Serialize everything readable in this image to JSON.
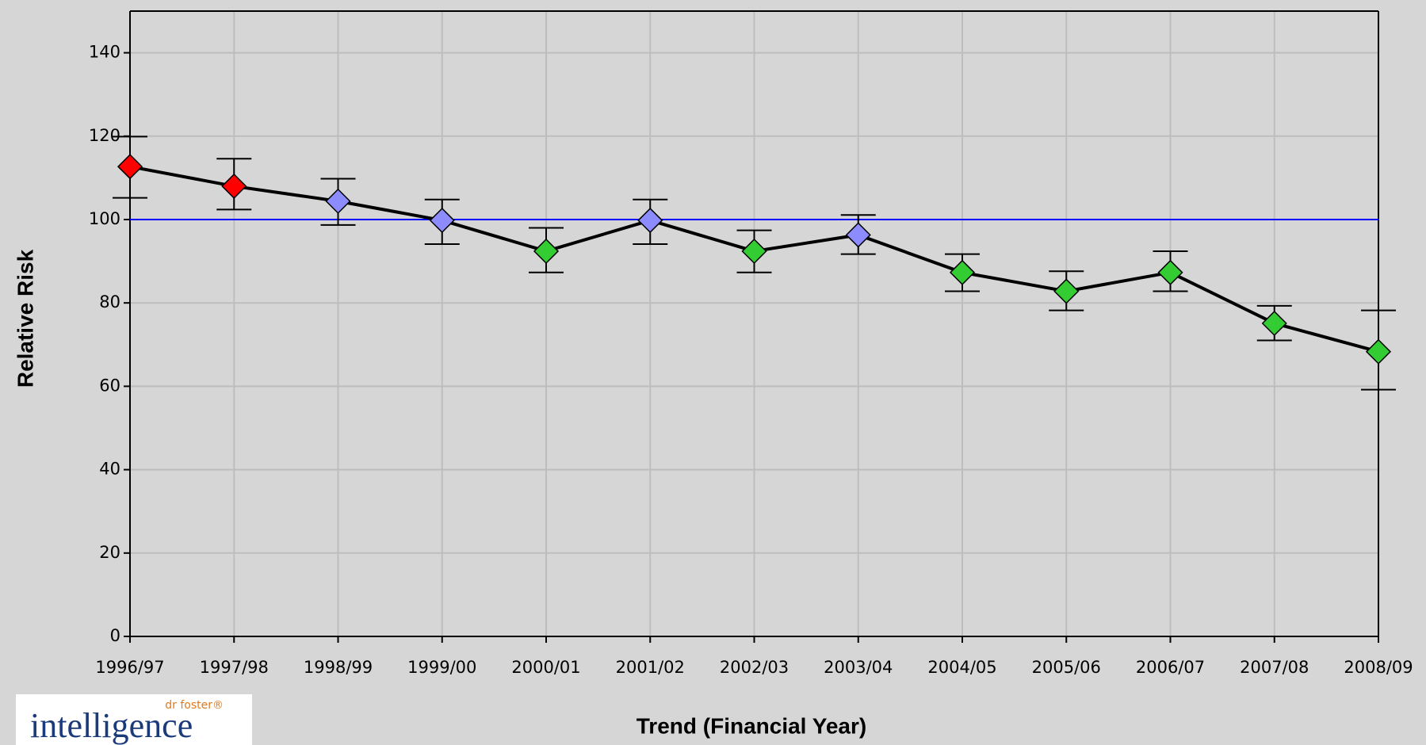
{
  "chart_data": {
    "type": "line",
    "x_label": "Trend (Financial Year)",
    "y_label": "Relative Risk",
    "categories": [
      "1996/97",
      "1997/98",
      "1998/99",
      "1999/00",
      "2000/01",
      "2001/02",
      "2002/03",
      "2003/04",
      "2004/05",
      "2005/06",
      "2006/07",
      "2007/08",
      "2008/09"
    ],
    "values": [
      112.7,
      108,
      104.4,
      99.8,
      92.4,
      99.8,
      92.4,
      96.3,
      87.3,
      82.8,
      87.3,
      75.1,
      68.3
    ],
    "upper": [
      119.9,
      114.6,
      109.8,
      104.8,
      98,
      104.8,
      97.4,
      101.1,
      91.7,
      87.6,
      92.4,
      79.3,
      78.2
    ],
    "lower": [
      105.2,
      102.4,
      98.7,
      94.1,
      87.3,
      94.1,
      87.3,
      91.7,
      82.8,
      78.2,
      82.8,
      71,
      59.2
    ],
    "colors": [
      "#ff0000",
      "#ff0000",
      "#8c8cff",
      "#8c8cff",
      "#33cc33",
      "#8c8cff",
      "#33cc33",
      "#8c8cff",
      "#33cc33",
      "#33cc33",
      "#33cc33",
      "#33cc33",
      "#33cc33"
    ],
    "line_color": "#000000",
    "reference_line": 100,
    "reference_color": "#0000ff",
    "ylim": [
      0,
      150
    ],
    "yticks": [
      0,
      20,
      40,
      60,
      80,
      100,
      120,
      140
    ],
    "grid": true
  },
  "logo": {
    "brand": "dr foster®",
    "name": "intelligence"
  }
}
